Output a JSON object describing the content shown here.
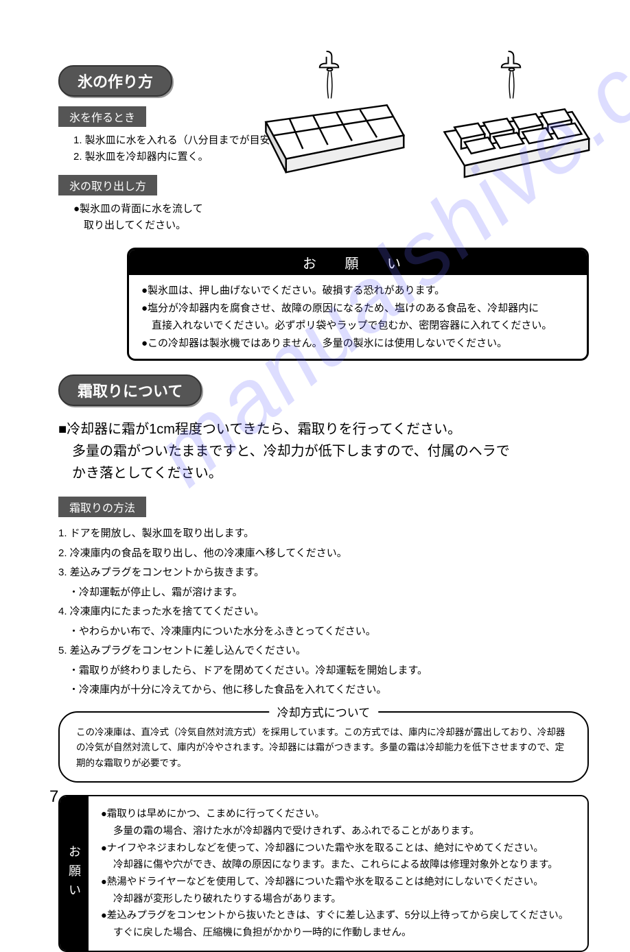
{
  "ice": {
    "heading": "氷の作り方",
    "make_heading": "氷を作るとき",
    "make_steps": [
      "1. 製氷皿に水を入れる（八分目までが目安）",
      "2. 製氷皿を冷却器内に置く。"
    ],
    "remove_heading": "氷の取り出し方",
    "remove_text": "●製氷皿の背面に水を流して\n　取り出してください。"
  },
  "warn": {
    "title": "お 願 い",
    "items": [
      "●製氷皿は、押し曲げないでください。破損する恐れがあります。",
      "●塩分が冷却器内を腐食させ、故障の原因になるため、塩けのある食品を、冷却器内に\n　直接入れないでください。必ずポリ袋やラップで包むか、密閉容器に入れてください。",
      "●この冷却器は製氷機ではありません。多量の製氷には使用しないでください。"
    ]
  },
  "defrost": {
    "heading": "霜取りについて",
    "intro": "■冷却器に霜が1cm程度ついてきたら、霜取りを行ってください。\n　多量の霜がついたままですと、冷却力が低下しますので、付属のヘラで\n　かき落としてください。",
    "method_heading": "霜取りの方法",
    "steps": [
      "1. ドアを開放し、製氷皿を取り出します。",
      "2. 冷凍庫内の食品を取り出し、他の冷凍庫へ移してください。",
      "3. 差込みプラグをコンセントから抜きます。",
      "　・冷却運転が停止し、霜が溶けます。",
      "4. 冷凍庫内にたまった水を捨ててください。",
      "　・やわらかい布で、冷凍庫内についた水分をふきとってください。",
      "5. 差込みプラグをコンセントに差し込んでください。",
      "　・霜取りが終わりましたら、ドアを閉めてください。冷却運転を開始します。",
      "　・冷凍庫内が十分に冷えてから、他に移した食品を入れてください。"
    ]
  },
  "cooling": {
    "title": "冷却方式について",
    "body": "この冷凍庫は、直冷式（冷気自然対流方式）を採用しています。この方式では、庫内に冷却器が露出しており、冷却器の冷気が自然対流して、庫内が冷やされます。冷却器には霜がつきます。多量の霜は冷却能力を低下させますので、定期的な霜取りが必要です。"
  },
  "request": {
    "label": "お願い",
    "items": [
      "●霜取りは早めにかつ、こまめに行ってください。",
      "sub:多量の霜の場合、溶けた水が冷却器内で受けきれず、あふれでることがあります。",
      "●ナイフやネジまわしなどを使って、冷却器についた霜や氷を取ることは、絶対にやめてください。",
      "sub:冷却器に傷や穴ができ、故障の原因になります。また、これらによる故障は修理対象外となります。",
      "●熱湯やドライヤーなどを使用して、冷却器についた霜や氷を取ることは絶対にしないでください。",
      "sub:冷却器が変形したり破れたりする場合があります。",
      "●差込みプラグをコンセントから抜いたときは、すぐに差し込まず、5分以上待ってから戻してください。",
      "sub:すぐに戻した場合、圧縮機に負担がかかり一時的に作動しません。"
    ]
  },
  "page_number": "7",
  "watermark": "manualshive.com",
  "illust": {
    "tray_stroke": "#000000",
    "tray_fill": "#ffffff",
    "water_stroke": "#000000"
  }
}
